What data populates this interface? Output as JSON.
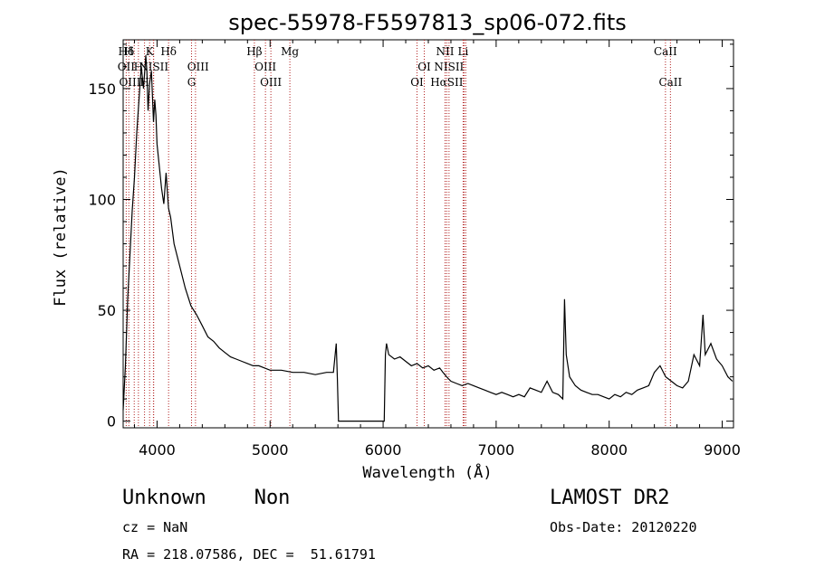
{
  "chart_data": {
    "type": "line",
    "title": "spec-55978-F5597813_sp06-072.fits",
    "xlabel": "Wavelength (Å)",
    "ylabel": "Flux (relative)",
    "xlim": [
      3700,
      9100
    ],
    "ylim": [
      -3,
      172
    ],
    "xticks": [
      4000,
      5000,
      6000,
      7000,
      8000,
      9000
    ],
    "yticks": [
      0,
      50,
      100,
      150
    ],
    "grid": false,
    "series": [
      {
        "color": "#000000",
        "x": [
          3700,
          3720,
          3740,
          3760,
          3780,
          3800,
          3820,
          3840,
          3860,
          3880,
          3900,
          3910,
          3920,
          3933,
          3950,
          3968,
          3980,
          3990,
          4000,
          4020,
          4040,
          4060,
          4080,
          4101,
          4120,
          4150,
          4200,
          4250,
          4300,
          4350,
          4400,
          4450,
          4500,
          4550,
          4600,
          4650,
          4700,
          4750,
          4800,
          4850,
          4900,
          4950,
          5000,
          5100,
          5200,
          5300,
          5400,
          5500,
          5560,
          5585,
          5595,
          5605,
          6010,
          6020,
          6030,
          6050,
          6100,
          6150,
          6200,
          6250,
          6300,
          6350,
          6400,
          6450,
          6500,
          6530,
          6563,
          6580,
          6600,
          6650,
          6700,
          6750,
          6800,
          6850,
          6900,
          6950,
          7000,
          7050,
          7100,
          7150,
          7200,
          7250,
          7300,
          7350,
          7400,
          7450,
          7500,
          7550,
          7590,
          7605,
          7620,
          7650,
          7700,
          7750,
          7800,
          7850,
          7900,
          7950,
          8000,
          8050,
          8100,
          8150,
          8200,
          8250,
          8300,
          8350,
          8400,
          8450,
          8500,
          8550,
          8600,
          8650,
          8700,
          8750,
          8800,
          8830,
          8850,
          8900,
          8950,
          9000,
          9050,
          9090
        ],
        "y": [
          5,
          25,
          55,
          75,
          95,
          110,
          130,
          145,
          160,
          150,
          165,
          158,
          140,
          152,
          158,
          135,
          145,
          138,
          125,
          115,
          105,
          98,
          112,
          96,
          92,
          80,
          70,
          60,
          52,
          48,
          43,
          38,
          36,
          33,
          31,
          29,
          28,
          27,
          26,
          25,
          25,
          24,
          23,
          23,
          22,
          22,
          21,
          22,
          22,
          35,
          20,
          0,
          0,
          30,
          35,
          30,
          28,
          29,
          27,
          25,
          26,
          24,
          25,
          23,
          24,
          22,
          20,
          19,
          18,
          17,
          16,
          17,
          16,
          15,
          14,
          13,
          12,
          13,
          12,
          11,
          12,
          11,
          15,
          14,
          13,
          18,
          13,
          12,
          10,
          55,
          30,
          20,
          16,
          14,
          13,
          12,
          12,
          11,
          10,
          12,
          11,
          13,
          12,
          14,
          15,
          16,
          22,
          25,
          20,
          18,
          16,
          15,
          18,
          30,
          25,
          48,
          30,
          35,
          28,
          25,
          20,
          18
        ]
      }
    ],
    "lines": [
      {
        "name": "Hδ",
        "x": 3727,
        "row": 0
      },
      {
        "name": "H",
        "x": 3750,
        "row": 0
      },
      {
        "name": "K",
        "x": 3934,
        "row": 0
      },
      {
        "name": "Hδ",
        "x": 4102,
        "row": 0
      },
      {
        "name": "Hβ",
        "x": 4861,
        "row": 0
      },
      {
        "name": "Mg",
        "x": 5175,
        "row": 0
      },
      {
        "name": "NII",
        "x": 6548,
        "row": 0
      },
      {
        "name": "Li",
        "x": 6708,
        "row": 0
      },
      {
        "name": "CaII",
        "x": 8498,
        "row": 0
      },
      {
        "name": "OII",
        "x": 3727,
        "row": 1
      },
      {
        "name": "H",
        "x": 3835,
        "row": 1
      },
      {
        "name": "NISII",
        "x": 3970,
        "row": 1
      },
      {
        "name": "OIII",
        "x": 4363,
        "row": 1
      },
      {
        "name": "OIII",
        "x": 4959,
        "row": 1
      },
      {
        "name": "OI",
        "x": 6364,
        "row": 1
      },
      {
        "name": "NISII",
        "x": 6583,
        "row": 1
      },
      {
        "name": "OIII",
        "x": 3760,
        "row": 2
      },
      {
        "name": "H",
        "x": 3889,
        "row": 2
      },
      {
        "name": "G",
        "x": 4305,
        "row": 2
      },
      {
        "name": "OIII",
        "x": 5007,
        "row": 2
      },
      {
        "name": "OI",
        "x": 6300,
        "row": 2
      },
      {
        "name": "HαSII",
        "x": 6563,
        "row": 2
      },
      {
        "name": "CaII",
        "x": 8542,
        "row": 2
      }
    ],
    "markers": [
      3727,
      3750,
      3798,
      3835,
      3889,
      3934,
      3968,
      3970,
      4102,
      4305,
      4340,
      4861,
      4959,
      5007,
      5175,
      6300,
      6364,
      6548,
      6563,
      6583,
      6708,
      6717,
      6731,
      8498,
      8542
    ]
  },
  "info": {
    "object": "Unknown    Non",
    "cz": "cz = NaN",
    "radec": "RA = 218.07586, DEC =  51.61791",
    "survey": "LAMOST DR2",
    "obsdate": "Obs-Date: 20120220"
  }
}
